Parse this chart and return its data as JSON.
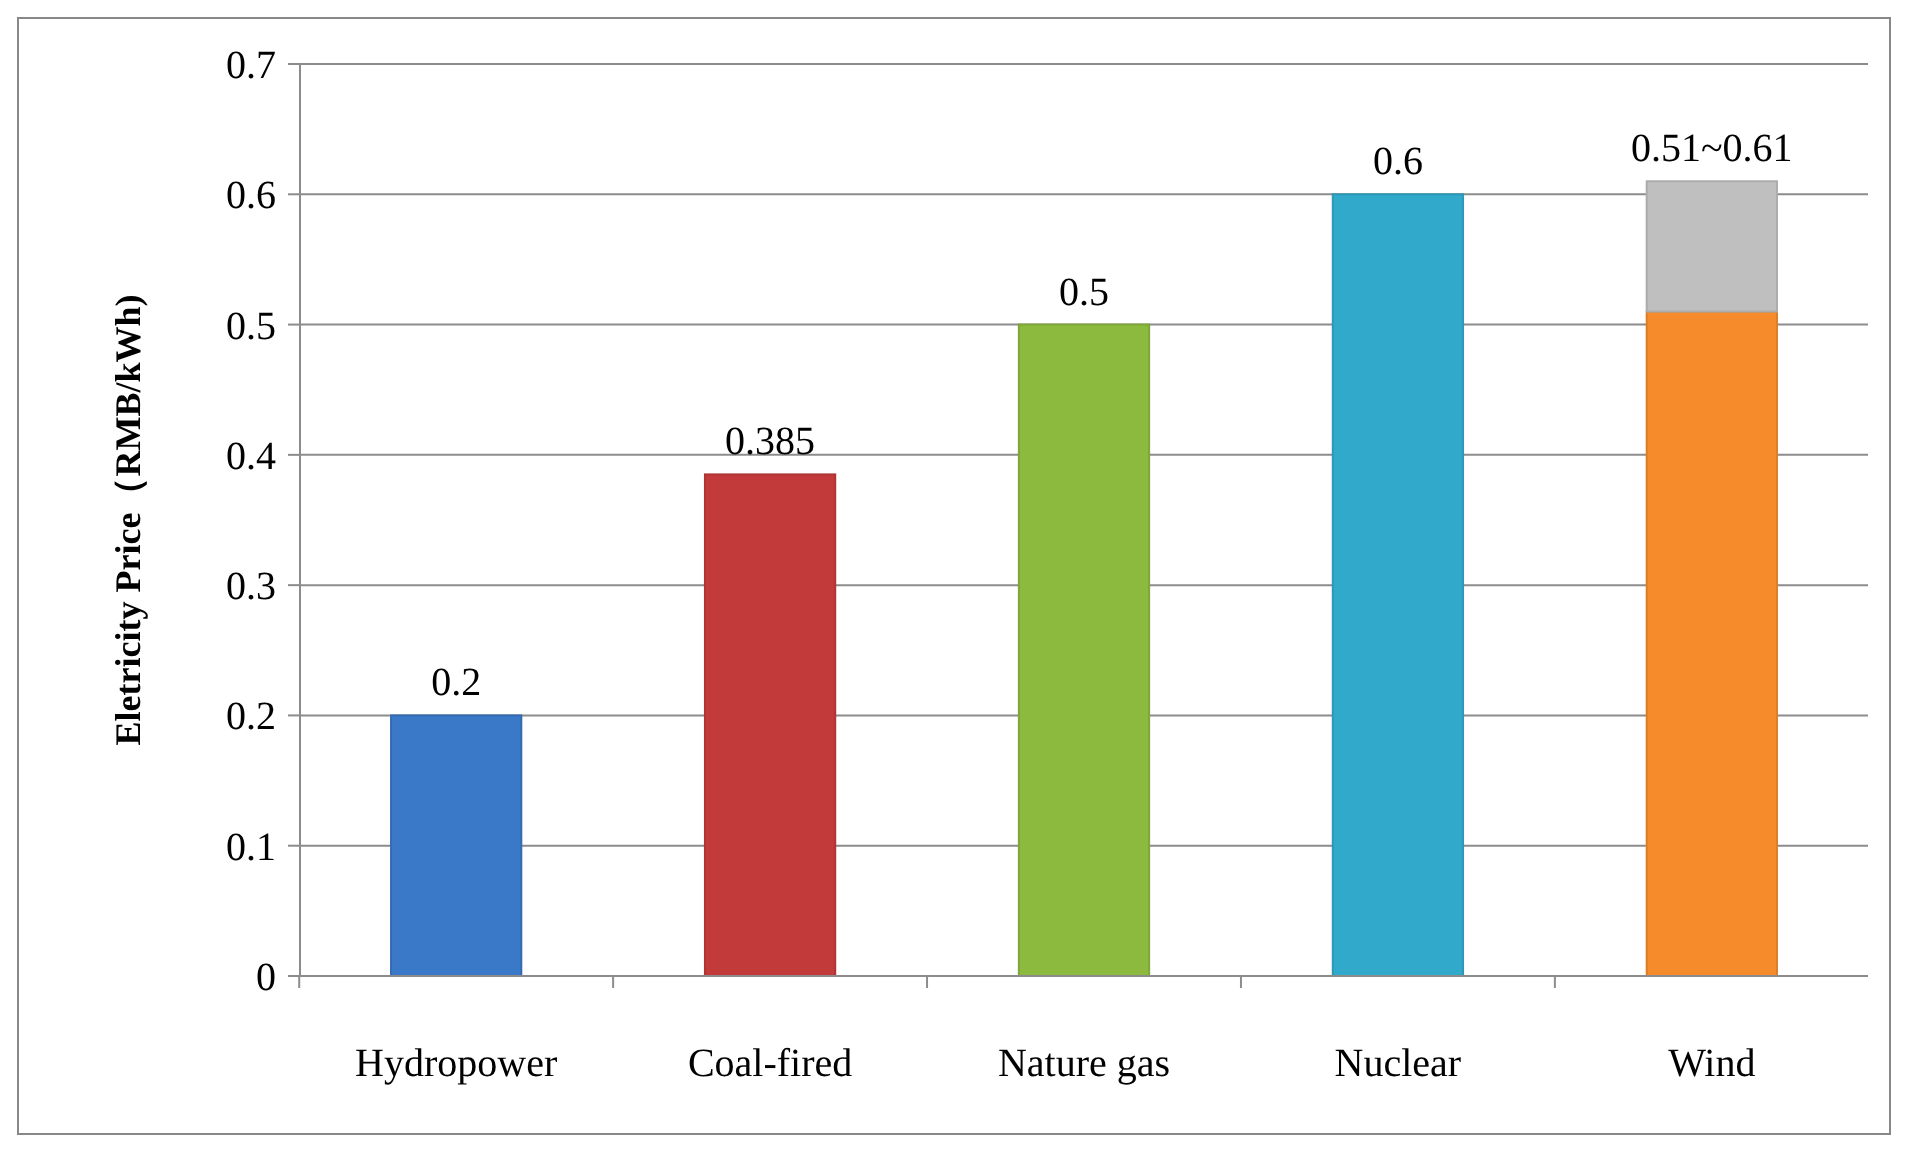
{
  "chart_data": {
    "type": "bar",
    "ylabel": "Eletricity Price（RMB/kWh)",
    "categories": [
      "Hydropower",
      "Coal-fired",
      "Nature gas",
      "Nuclear",
      "Wind"
    ],
    "stacked": true,
    "series": [
      {
        "colors": [
          "#3a78c8",
          "#c23b3a",
          "#8cba3e",
          "#31a9cb",
          "#f58b2b"
        ],
        "values": [
          0.2,
          0.385,
          0.5,
          0.6,
          0.51
        ]
      },
      {
        "color": "#bfbfbf",
        "values": [
          null,
          null,
          null,
          null,
          0.1
        ]
      }
    ],
    "totals": [
      "0.2",
      "0.385",
      "0.5",
      "0.6",
      "0.51~0.61"
    ],
    "ylim": [
      0,
      0.7
    ],
    "yticks": [
      0,
      0.1,
      0.2,
      0.3,
      0.4,
      0.5,
      0.6,
      0.7
    ],
    "grid": "y"
  }
}
